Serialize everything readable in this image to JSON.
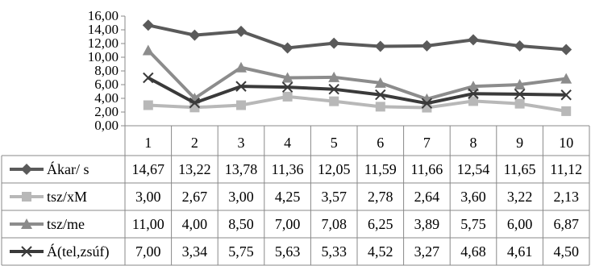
{
  "chart_data": {
    "type": "line",
    "with_data_table": true,
    "categories": [
      "1",
      "2",
      "3",
      "4",
      "5",
      "6",
      "7",
      "8",
      "9",
      "10"
    ],
    "yticks": [
      "0,00",
      "2,00",
      "4,00",
      "6,00",
      "8,00",
      "10,00",
      "12,00",
      "14,00",
      "16,00"
    ],
    "ylim": [
      0,
      16
    ],
    "ystep": 2,
    "grid": false,
    "series": [
      {
        "name": "Ákar/ s",
        "marker": "diamond",
        "color": "#5a5a5a",
        "values": [
          14.67,
          13.22,
          13.78,
          11.36,
          12.05,
          11.59,
          11.66,
          12.54,
          11.65,
          11.12
        ],
        "labels": [
          "14,67",
          "13,22",
          "13,78",
          "11,36",
          "12,05",
          "11,59",
          "11,66",
          "12,54",
          "11,65",
          "11,12"
        ]
      },
      {
        "name": "tsz/xM",
        "marker": "square",
        "color": "#b8b8b8",
        "values": [
          3.0,
          2.67,
          3.0,
          4.25,
          3.57,
          2.78,
          2.64,
          3.6,
          3.22,
          2.13
        ],
        "labels": [
          "3,00",
          "2,67",
          "3,00",
          "4,25",
          "3,57",
          "2,78",
          "2,64",
          "3,60",
          "3,22",
          "2,13"
        ]
      },
      {
        "name": "tsz/me",
        "marker": "triangle",
        "color": "#8c8c8c",
        "values": [
          11.0,
          4.0,
          8.5,
          7.0,
          7.08,
          6.25,
          3.89,
          5.75,
          6.0,
          6.87
        ],
        "labels": [
          "11,00",
          "4,00",
          "8,50",
          "7,00",
          "7,08",
          "6,25",
          "3,89",
          "5,75",
          "6,00",
          "6,87"
        ]
      },
      {
        "name": "Á(tel,zsúf)",
        "marker": "x",
        "color": "#3a3a3a",
        "values": [
          7.0,
          3.34,
          5.75,
          5.63,
          5.33,
          4.52,
          3.27,
          4.68,
          4.61,
          4.5
        ],
        "labels": [
          "7,00",
          "3,34",
          "5,75",
          "5,63",
          "5,33",
          "4,52",
          "3,27",
          "4,68",
          "4,61",
          "4,50"
        ]
      }
    ]
  }
}
